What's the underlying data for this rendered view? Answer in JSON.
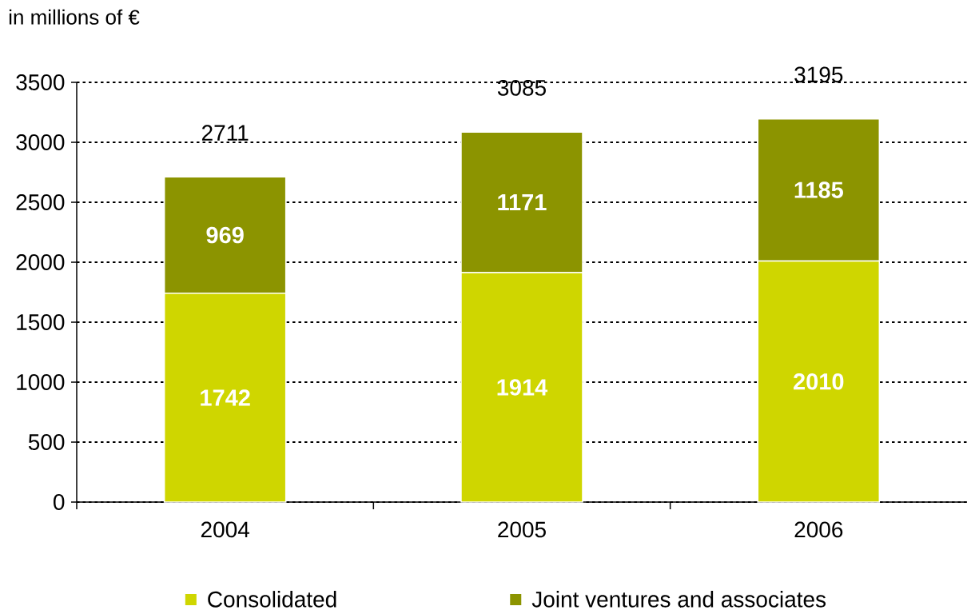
{
  "chart_data": {
    "type": "bar",
    "stacked": true,
    "ylabel": "in millions of €",
    "categories": [
      "2004",
      "2005",
      "2006"
    ],
    "series": [
      {
        "name": "Consolidated",
        "color": "#cfd600",
        "values": [
          1742,
          1914,
          2010
        ]
      },
      {
        "name": "Joint ventures and associates",
        "color": "#8c9400",
        "values": [
          969,
          1171,
          1185
        ]
      }
    ],
    "totals": [
      "2711",
      "3085",
      "3195"
    ],
    "data_labels": true,
    "ylim": [
      0,
      3500
    ],
    "yticks": [
      0,
      500,
      1000,
      1500,
      2000,
      2500,
      3000,
      3500
    ],
    "grid": "y",
    "legend": "bottom"
  }
}
